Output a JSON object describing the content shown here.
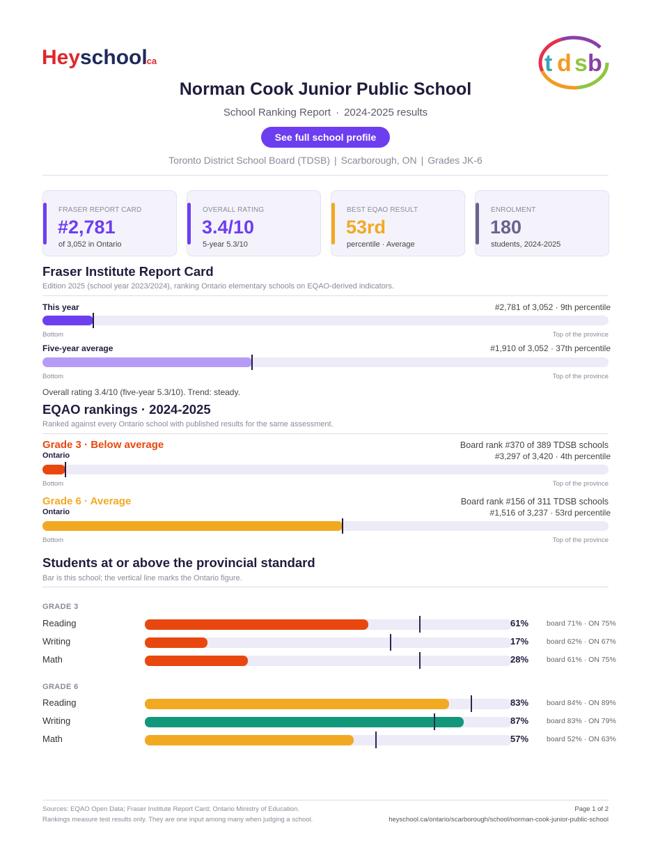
{
  "header": {
    "logo_left_text": "Heyschool.ca",
    "logo_right_text": "tdsb",
    "title": "Norman Cook Junior Public School",
    "subtitle_report": "School Ranking Report",
    "subtitle_sep": "·",
    "subtitle_years": "2024-2025 results",
    "cta_label": "See full school profile",
    "meta_board": "Toronto District School Board (TDSB)",
    "meta_city": "Scarborough, ON",
    "meta_grades": "Grades JK-6",
    "meta_sep": "|"
  },
  "colors": {
    "brand_purple": "#6d3ef0",
    "light_purple": "#b79cf7",
    "orange_red": "#e8480f",
    "amber": "#f2a922",
    "green": "#13977b",
    "slate": "#6a638d",
    "navy": "#1f1d3d"
  },
  "cards": [
    {
      "label": "FRASER REPORT CARD",
      "value": "#2,781",
      "sub": "of 3,052 in Ontario"
    },
    {
      "label": "OVERALL RATING",
      "value": "3.4/10",
      "sub": "5-year 5.3/10"
    },
    {
      "label": "BEST EQAO RESULT",
      "value": "53rd",
      "sub": "percentile  ·  Average"
    },
    {
      "label": "ENROLMENT",
      "value": "180",
      "sub": "students, 2024-2025"
    }
  ],
  "fraser": {
    "heading": "Fraser Institute Report Card",
    "note": "Edition 2025 (school year 2023/2024), ranking Ontario elementary schools on EQAO-derived indicators.",
    "this_year_label": "This year",
    "this_year_rank": "#2,781 of 3,052  ·  9th percentile",
    "this_year_percentile": 9,
    "five_year_label": "Five-year average",
    "five_year_rank": "#1,910 of 3,052  ·  37th percentile",
    "five_year_percentile": 37,
    "axis_bottom": "Bottom",
    "axis_top": "Top of the province",
    "summary": "Overall rating 3.4/10 (five-year 5.3/10). Trend: steady."
  },
  "eqao": {
    "heading": "EQAO rankings  ·  2024-2025",
    "note": "Ranked against every Ontario school with published results for the same assessment.",
    "grade3_head": "Grade 3  ·  Below average",
    "grade3_board_rank": "Board rank #370 of 389 TDSB schools",
    "grade3_scope": "Ontario",
    "grade3_ontario_rank": "#3,297 of 3,420  ·  4th percentile",
    "grade3_percentile": 4,
    "grade6_head": "Grade 6  ·  Average",
    "grade6_board_rank": "Board rank #156 of 311 TDSB schools",
    "grade6_scope": "Ontario",
    "grade6_ontario_rank": "#1,516 of 3,237  ·  53rd percentile",
    "grade6_percentile": 53,
    "axis_bottom": "Bottom",
    "axis_top": "Top of the province"
  },
  "standard": {
    "heading": "Students at or above the provincial standard",
    "note": "Bar is this school; the vertical line marks the Ontario figure.",
    "grade3_label": "GRADE 3",
    "grade6_label": "GRADE 6",
    "grade3_rows": [
      {
        "subject": "Reading",
        "pct_text": "61%",
        "school": 61,
        "ontario": 75,
        "cmp": "board 71%  ·  ON 75%"
      },
      {
        "subject": "Writing",
        "pct_text": "17%",
        "school": 17,
        "ontario": 67,
        "cmp": "board 62%  ·  ON 67%"
      },
      {
        "subject": "Math",
        "pct_text": "28%",
        "school": 28,
        "ontario": 75,
        "cmp": "board 61%  ·  ON 75%"
      }
    ],
    "grade6_rows": [
      {
        "subject": "Reading",
        "pct_text": "83%",
        "school": 83,
        "ontario": 89,
        "cmp": "board 84%  ·  ON 89%"
      },
      {
        "subject": "Writing",
        "pct_text": "87%",
        "school": 87,
        "ontario": 79,
        "cmp": "board 83%  ·  ON 79%"
      },
      {
        "subject": "Math",
        "pct_text": "57%",
        "school": 57,
        "ontario": 63,
        "cmp": "board 52%  ·  ON 63%"
      }
    ]
  },
  "footer": {
    "sources": "Sources: EQAO Open Data; Fraser Institute Report Card; Ontario Ministry of Education.",
    "disclaimer": "Rankings measure test results only. They are one input among many when judging a school.",
    "page": "Page 1 of 2",
    "url": "heyschool.ca/ontario/scarborough/school/norman-cook-junior-public-school"
  }
}
